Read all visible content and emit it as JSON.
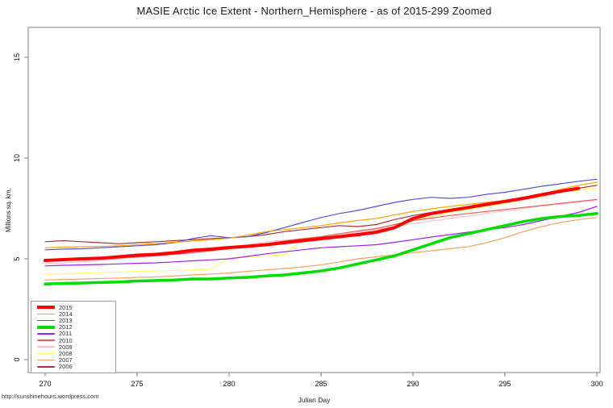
{
  "footer": {
    "url": "http://sunshinehours.wordpress.com"
  },
  "chart_data": {
    "type": "line",
    "title": "MASIE Arctic Ice Extent - Northern_Hemisphere - as of 2015-299 Zoomed",
    "xlabel": "Julian Day",
    "ylabel": "Millions sq. km.",
    "x_start": 270,
    "xlim": [
      270,
      300
    ],
    "ylim": [
      0,
      16
    ],
    "x_ticks": [
      270,
      275,
      280,
      285,
      290,
      295,
      300
    ],
    "y_ticks": [
      0,
      5,
      10,
      15
    ],
    "grid": false,
    "legend_position": "bottom-left",
    "axis_color": "#808080",
    "series": [
      {
        "name": "2015",
        "color": "#ff0000",
        "width": 4,
        "values": [
          4.92,
          4.96,
          5.0,
          5.03,
          5.1,
          5.18,
          5.22,
          5.3,
          5.42,
          5.48,
          5.56,
          5.62,
          5.7,
          5.8,
          5.9,
          6.0,
          6.1,
          6.2,
          6.32,
          6.55,
          7.0,
          7.25,
          7.4,
          7.55,
          7.7,
          7.85,
          8.0,
          8.18,
          8.35,
          8.5
        ]
      },
      {
        "name": "2014",
        "color": "#ffa500",
        "width": 1.2,
        "values": [
          5.55,
          5.58,
          5.6,
          5.62,
          5.65,
          5.7,
          5.76,
          5.82,
          5.88,
          5.95,
          6.02,
          6.18,
          6.35,
          6.45,
          6.55,
          6.65,
          6.78,
          6.9,
          7.0,
          7.18,
          7.35,
          7.48,
          7.6,
          7.7,
          7.8,
          7.9,
          8.05,
          8.2,
          8.45,
          8.65,
          8.8
        ]
      },
      {
        "name": "2013",
        "color": "#5252dd",
        "width": 1.2,
        "values": [
          5.45,
          5.48,
          5.5,
          5.55,
          5.6,
          5.65,
          5.7,
          5.8,
          6.0,
          6.15,
          6.05,
          6.1,
          6.3,
          6.55,
          6.8,
          7.05,
          7.25,
          7.4,
          7.6,
          7.8,
          7.95,
          8.05,
          8.0,
          8.05,
          8.2,
          8.3,
          8.45,
          8.6,
          8.72,
          8.85,
          8.95
        ]
      },
      {
        "name": "2012",
        "color": "#00dd00",
        "width": 3.5,
        "values": [
          3.75,
          3.78,
          3.8,
          3.83,
          3.85,
          3.9,
          3.92,
          3.95,
          4.0,
          4.0,
          4.05,
          4.08,
          4.15,
          4.2,
          4.3,
          4.4,
          4.55,
          4.75,
          4.95,
          5.15,
          5.45,
          5.75,
          6.05,
          6.25,
          6.45,
          6.65,
          6.85,
          7.0,
          7.1,
          7.15,
          7.25
        ]
      },
      {
        "name": "2011",
        "color": "#a020f0",
        "width": 1.2,
        "values": [
          4.65,
          4.68,
          4.7,
          4.72,
          4.75,
          4.78,
          4.8,
          4.85,
          4.9,
          4.95,
          5.0,
          5.12,
          5.25,
          5.35,
          5.45,
          5.55,
          5.6,
          5.65,
          5.7,
          5.82,
          5.95,
          6.08,
          6.2,
          6.32,
          6.45,
          6.55,
          6.7,
          6.9,
          7.1,
          7.3,
          7.6
        ]
      },
      {
        "name": "2010",
        "color": "#f05555",
        "width": 1.2,
        "values": [
          4.95,
          4.98,
          5.0,
          5.02,
          5.05,
          5.1,
          5.15,
          5.22,
          5.3,
          5.4,
          5.5,
          5.62,
          5.75,
          5.88,
          6.0,
          6.1,
          6.25,
          6.38,
          6.5,
          6.7,
          6.9,
          7.02,
          7.15,
          7.25,
          7.35,
          7.45,
          7.55,
          7.65,
          7.75,
          7.85,
          7.95
        ]
      },
      {
        "name": "2009",
        "color": "#ffc0cb",
        "width": 1.2,
        "values": [
          4.75,
          4.8,
          4.85,
          4.92,
          5.0,
          5.08,
          5.15,
          5.25,
          5.35,
          5.45,
          5.55,
          5.7,
          5.85,
          5.92,
          6.0,
          6.08,
          6.18,
          6.32,
          6.45,
          6.6,
          6.75,
          6.88,
          7.0,
          7.12,
          7.25,
          7.38,
          7.5,
          7.62,
          7.72,
          7.82,
          7.9
        ]
      },
      {
        "name": "2008",
        "color": "#ffff66",
        "width": 1.2,
        "values": [
          4.24,
          4.26,
          4.28,
          4.32,
          4.35,
          4.38,
          4.4,
          4.42,
          4.45,
          4.48,
          5.05,
          5.1,
          5.15,
          5.2,
          6.0,
          6.08,
          6.15,
          6.22,
          6.35,
          6.6,
          6.9,
          7.1,
          7.3,
          7.45,
          7.6,
          7.75,
          7.95,
          8.1,
          8.3,
          8.4,
          8.5
        ]
      },
      {
        "name": "2007",
        "color": "#f4a460",
        "width": 1.2,
        "values": [
          3.95,
          3.98,
          4.0,
          4.02,
          4.05,
          4.08,
          4.1,
          4.15,
          4.2,
          4.25,
          4.3,
          4.38,
          4.45,
          4.52,
          4.6,
          4.7,
          4.85,
          5.0,
          5.1,
          5.2,
          5.3,
          5.4,
          5.5,
          5.6,
          5.8,
          6.05,
          6.35,
          6.6,
          6.8,
          6.95,
          7.05
        ]
      },
      {
        "name": "2006",
        "color": "#a83232",
        "width": 1.2,
        "values": [
          5.85,
          5.9,
          5.85,
          5.8,
          5.75,
          5.8,
          5.85,
          5.9,
          5.95,
          6.0,
          6.05,
          6.1,
          6.2,
          6.35,
          6.45,
          6.55,
          6.65,
          6.6,
          6.7,
          6.95,
          7.15,
          7.3,
          7.45,
          7.55,
          7.7,
          7.8,
          7.95,
          8.1,
          8.3,
          8.5,
          8.65
        ]
      }
    ]
  }
}
